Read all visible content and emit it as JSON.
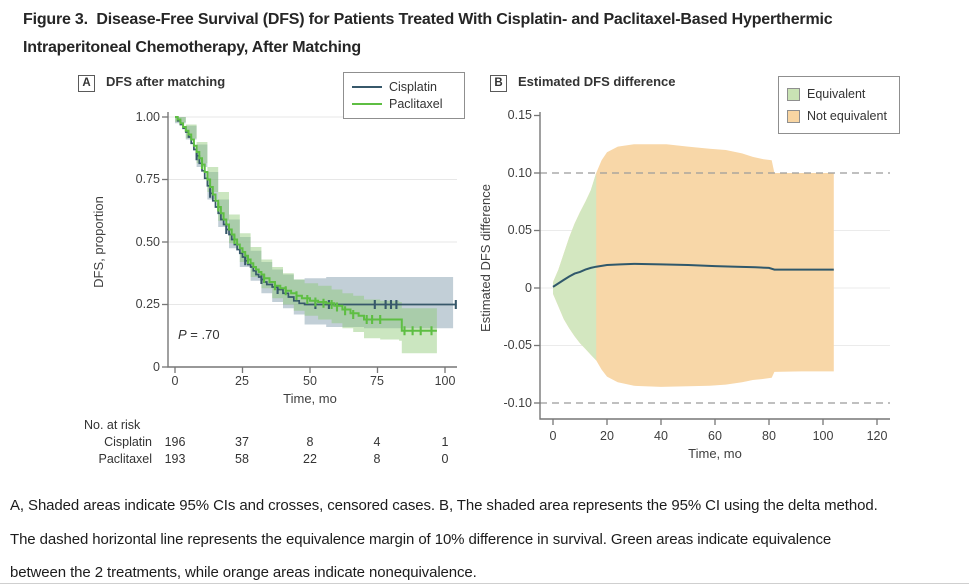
{
  "figure": {
    "title_lines": [
      "Figure 3.  Disease-Free Survival (DFS) for Patients Treated With Cisplatin- and Paclitaxel-Based Hyperthermic",
      "Intraperitoneal Chemotherapy, After Matching"
    ],
    "caption_lines": [
      "A, Shaded areas indicate 95% CIs and crosses, censored cases. B, The shaded area represents the 95% CI using the delta method.",
      "The dashed horizontal line represents the equivalence margin of 10% difference in survival. Green areas indicate equivalence",
      "between the 2 treatments, while orange areas indicate nonequivalence."
    ]
  },
  "panel_a": {
    "label": "A",
    "title": "DFS after matching",
    "legend": [
      {
        "label": "Cisplatin",
        "color": "#37586a"
      },
      {
        "label": "Paclitaxel",
        "color": "#5ebe43"
      }
    ],
    "ylabel": "DFS, proportion",
    "xlabel": "Time, mo",
    "y_ticks": [
      "1.00",
      "0.75",
      "0.50",
      "0.25",
      "0"
    ],
    "x_ticks": [
      "0",
      "25",
      "50",
      "75",
      "100"
    ],
    "p_italic": "P",
    "p_rest": " = .70",
    "risk": {
      "header": "No. at risk",
      "rows": [
        {
          "label": "Cisplatin",
          "values": [
            "196",
            "37",
            "8",
            "4",
            "1"
          ]
        },
        {
          "label": "Paclitaxel",
          "values": [
            "193",
            "58",
            "22",
            "8",
            "0"
          ]
        }
      ]
    }
  },
  "panel_b": {
    "label": "B",
    "title": "Estimated DFS difference",
    "legend": [
      {
        "label": "Equivalent",
        "color": "#c9e3b4"
      },
      {
        "label": "Not equivalent",
        "color": "#f8d5a2"
      }
    ],
    "ylabel": "Estimated DFS difference",
    "xlabel": "Time, mo",
    "y_ticks": [
      "0.15",
      "0.10",
      "0.05",
      "0",
      "-0.05",
      "-0.10"
    ],
    "x_ticks": [
      "0",
      "20",
      "40",
      "60",
      "80",
      "100",
      "120"
    ]
  },
  "chart_data": [
    {
      "type": "line",
      "subtype": "kaplan_meier",
      "title": "DFS after matching",
      "xlabel": "Time, mo",
      "ylabel": "DFS, proportion",
      "xlim": [
        0,
        107
      ],
      "ylim": [
        0,
        1.0
      ],
      "x_ticks": [
        0,
        25,
        50,
        75,
        100
      ],
      "y_ticks": [
        0,
        0.25,
        0.5,
        0.75,
        1.0
      ],
      "grid": "horizontal",
      "p_value": "P = .70",
      "legend_position": "top-right",
      "series": [
        {
          "name": "Cisplatin",
          "color": "#37586a",
          "ci_color": "#6e8ca0",
          "ci_opacity": 0.42,
          "points": [
            [
              0,
              1.0
            ],
            [
              1,
              0.985
            ],
            [
              2,
              0.97
            ],
            [
              3,
              0.955
            ],
            [
              4,
              0.94
            ],
            [
              5,
              0.92
            ],
            [
              6,
              0.895
            ],
            [
              7,
              0.87
            ],
            [
              8,
              0.845
            ],
            [
              9,
              0.815
            ],
            [
              10,
              0.785
            ],
            [
              11,
              0.755
            ],
            [
              12,
              0.725
            ],
            [
              13,
              0.695
            ],
            [
              14,
              0.665
            ],
            [
              15,
              0.64
            ],
            [
              16,
              0.615
            ],
            [
              17,
              0.59
            ],
            [
              18,
              0.57
            ],
            [
              19,
              0.55
            ],
            [
              20,
              0.53
            ],
            [
              21,
              0.51
            ],
            [
              22,
              0.49
            ],
            [
              23,
              0.47
            ],
            [
              24,
              0.455
            ],
            [
              25,
              0.44
            ],
            [
              26,
              0.425
            ],
            [
              27,
              0.41
            ],
            [
              28,
              0.4
            ],
            [
              29,
              0.385
            ],
            [
              30,
              0.37
            ],
            [
              31,
              0.36
            ],
            [
              32,
              0.35
            ],
            [
              33,
              0.34
            ],
            [
              34,
              0.33
            ],
            [
              36,
              0.32
            ],
            [
              38,
              0.31
            ],
            [
              40,
              0.295
            ],
            [
              42,
              0.28
            ],
            [
              44,
              0.265
            ],
            [
              46,
              0.255
            ],
            [
              48,
              0.25
            ],
            [
              104,
              0.25
            ]
          ],
          "ci": [
            [
              0,
              1.0,
              0.975
            ],
            [
              4,
              0.965,
              0.91
            ],
            [
              8,
              0.89,
              0.8
            ],
            [
              12,
              0.78,
              0.67
            ],
            [
              16,
              0.67,
              0.56
            ],
            [
              20,
              0.59,
              0.475
            ],
            [
              24,
              0.52,
              0.4
            ],
            [
              28,
              0.465,
              0.345
            ],
            [
              32,
              0.42,
              0.295
            ],
            [
              36,
              0.39,
              0.26
            ],
            [
              40,
              0.37,
              0.235
            ],
            [
              44,
              0.35,
              0.21
            ],
            [
              48,
              0.355,
              0.17
            ],
            [
              56,
              0.36,
              0.16
            ],
            [
              70,
              0.36,
              0.155
            ],
            [
              103,
              0.36,
              0.155
            ]
          ],
          "censored": [
            [
              8,
              0.845
            ],
            [
              13,
              0.695
            ],
            [
              19,
              0.55
            ],
            [
              26,
              0.425
            ],
            [
              32,
              0.35
            ],
            [
              38,
              0.31
            ],
            [
              52,
              0.25
            ],
            [
              57,
              0.25
            ],
            [
              74,
              0.25
            ],
            [
              78,
              0.25
            ],
            [
              80,
              0.25
            ],
            [
              82,
              0.25
            ],
            [
              104,
              0.25
            ]
          ]
        },
        {
          "name": "Paclitaxel",
          "color": "#5ebe43",
          "ci_color": "#8cc873",
          "ci_opacity": 0.45,
          "points": [
            [
              0,
              1.0
            ],
            [
              1,
              0.99
            ],
            [
              2,
              0.975
            ],
            [
              3,
              0.96
            ],
            [
              4,
              0.945
            ],
            [
              5,
              0.93
            ],
            [
              6,
              0.91
            ],
            [
              7,
              0.885
            ],
            [
              8,
              0.86
            ],
            [
              9,
              0.835
            ],
            [
              10,
              0.81
            ],
            [
              11,
              0.78
            ],
            [
              12,
              0.75
            ],
            [
              13,
              0.72
            ],
            [
              14,
              0.69
            ],
            [
              15,
              0.665
            ],
            [
              16,
              0.64
            ],
            [
              17,
              0.615
            ],
            [
              18,
              0.59
            ],
            [
              19,
              0.57
            ],
            [
              20,
              0.55
            ],
            [
              21,
              0.53
            ],
            [
              22,
              0.51
            ],
            [
              23,
              0.49
            ],
            [
              24,
              0.475
            ],
            [
              25,
              0.46
            ],
            [
              26,
              0.445
            ],
            [
              27,
              0.43
            ],
            [
              28,
              0.415
            ],
            [
              29,
              0.4
            ],
            [
              30,
              0.39
            ],
            [
              31,
              0.38
            ],
            [
              32,
              0.37
            ],
            [
              33,
              0.355
            ],
            [
              35,
              0.34
            ],
            [
              37,
              0.325
            ],
            [
              39,
              0.315
            ],
            [
              41,
              0.305
            ],
            [
              43,
              0.295
            ],
            [
              45,
              0.285
            ],
            [
              47,
              0.275
            ],
            [
              50,
              0.265
            ],
            [
              53,
              0.26
            ],
            [
              56,
              0.255
            ],
            [
              59,
              0.245
            ],
            [
              62,
              0.23
            ],
            [
              65,
              0.215
            ],
            [
              68,
              0.205
            ],
            [
              70,
              0.19
            ],
            [
              83,
              0.19
            ],
            [
              84,
              0.145
            ],
            [
              97,
              0.145
            ]
          ],
          "ci": [
            [
              0,
              1.0,
              0.98
            ],
            [
              4,
              0.97,
              0.915
            ],
            [
              8,
              0.9,
              0.815
            ],
            [
              12,
              0.8,
              0.7
            ],
            [
              16,
              0.7,
              0.585
            ],
            [
              20,
              0.61,
              0.495
            ],
            [
              24,
              0.535,
              0.42
            ],
            [
              28,
              0.48,
              0.36
            ],
            [
              32,
              0.43,
              0.315
            ],
            [
              36,
              0.4,
              0.275
            ],
            [
              40,
              0.375,
              0.25
            ],
            [
              44,
              0.35,
              0.225
            ],
            [
              48,
              0.335,
              0.205
            ],
            [
              53,
              0.325,
              0.19
            ],
            [
              58,
              0.31,
              0.175
            ],
            [
              62,
              0.295,
              0.155
            ],
            [
              66,
              0.285,
              0.14
            ],
            [
              70,
              0.27,
              0.115
            ],
            [
              76,
              0.265,
              0.11
            ],
            [
              83,
              0.26,
              0.105
            ],
            [
              84,
              0.235,
              0.055
            ],
            [
              97,
              0.23,
              0.05
            ]
          ],
          "censored": [
            [
              10,
              0.81
            ],
            [
              16,
              0.64
            ],
            [
              22,
              0.51
            ],
            [
              27,
              0.43
            ],
            [
              33,
              0.355
            ],
            [
              37,
              0.325
            ],
            [
              41,
              0.305
            ],
            [
              45,
              0.285
            ],
            [
              49,
              0.27
            ],
            [
              52,
              0.26
            ],
            [
              55,
              0.255
            ],
            [
              58,
              0.25
            ],
            [
              60,
              0.24
            ],
            [
              63,
              0.225
            ],
            [
              66,
              0.21
            ],
            [
              71,
              0.19
            ],
            [
              73,
              0.19
            ],
            [
              76,
              0.19
            ],
            [
              85,
              0.145
            ],
            [
              88,
              0.145
            ],
            [
              91,
              0.145
            ],
            [
              95,
              0.145
            ]
          ]
        }
      ],
      "at_risk": {
        "times": [
          0,
          25,
          50,
          75,
          100
        ],
        "Cisplatin": [
          196,
          37,
          8,
          4,
          1
        ],
        "Paclitaxel": [
          193,
          58,
          22,
          8,
          0
        ]
      }
    },
    {
      "type": "area",
      "subtype": "equivalence_band",
      "title": "Estimated DFS difference",
      "xlabel": "Time, mo",
      "ylabel": "Estimated DFS difference",
      "xlim": [
        0,
        120
      ],
      "ylim": [
        -0.1,
        0.15
      ],
      "x_ticks": [
        0,
        20,
        40,
        60,
        80,
        100,
        120
      ],
      "y_ticks": [
        -0.1,
        -0.05,
        0,
        0.05,
        0.1,
        0.15
      ],
      "equivalence_margin": 0.1,
      "equivalent_until_month": 16,
      "dashed_line_color": "#9b9b9b",
      "region_colors": {
        "equivalent": "#d3e7c0",
        "not_equivalent": "#f8d7a8"
      },
      "line": {
        "name": "Estimated DFS difference",
        "color": "#30586b",
        "points": [
          [
            0,
            0.001
          ],
          [
            2,
            0.004
          ],
          [
            4,
            0.007
          ],
          [
            6,
            0.01
          ],
          [
            8,
            0.0125
          ],
          [
            10,
            0.014
          ],
          [
            12,
            0.016
          ],
          [
            14,
            0.0175
          ],
          [
            16,
            0.0185
          ],
          [
            20,
            0.02
          ],
          [
            25,
            0.0205
          ],
          [
            30,
            0.021
          ],
          [
            40,
            0.0205
          ],
          [
            50,
            0.02
          ],
          [
            60,
            0.019
          ],
          [
            68,
            0.0185
          ],
          [
            75,
            0.018
          ],
          [
            80,
            0.0175
          ],
          [
            82,
            0.016
          ],
          [
            92,
            0.016
          ],
          [
            104,
            0.016
          ]
        ]
      },
      "ci_upper": [
        [
          0,
          0.005
        ],
        [
          2,
          0.016
        ],
        [
          4,
          0.03
        ],
        [
          6,
          0.044
        ],
        [
          8,
          0.056
        ],
        [
          10,
          0.066
        ],
        [
          12,
          0.075
        ],
        [
          14,
          0.085
        ],
        [
          16,
          0.1
        ],
        [
          18,
          0.111
        ],
        [
          20,
          0.118
        ],
        [
          24,
          0.123
        ],
        [
          30,
          0.125
        ],
        [
          42,
          0.125
        ],
        [
          50,
          0.123
        ],
        [
          58,
          0.121
        ],
        [
          64,
          0.12
        ],
        [
          70,
          0.117
        ],
        [
          74,
          0.114
        ],
        [
          78,
          0.112
        ],
        [
          81,
          0.111
        ],
        [
          82,
          0.1
        ],
        [
          104,
          0.1
        ]
      ],
      "ci_lower": [
        [
          0,
          -0.005
        ],
        [
          2,
          -0.016
        ],
        [
          4,
          -0.027
        ],
        [
          6,
          -0.035
        ],
        [
          8,
          -0.042
        ],
        [
          10,
          -0.048
        ],
        [
          12,
          -0.053
        ],
        [
          14,
          -0.058
        ],
        [
          16,
          -0.063
        ],
        [
          18,
          -0.071
        ],
        [
          20,
          -0.077
        ],
        [
          24,
          -0.082
        ],
        [
          30,
          -0.085
        ],
        [
          40,
          -0.086
        ],
        [
          50,
          -0.0855
        ],
        [
          58,
          -0.085
        ],
        [
          64,
          -0.084
        ],
        [
          70,
          -0.082
        ],
        [
          74,
          -0.08
        ],
        [
          78,
          -0.079
        ],
        [
          81,
          -0.078
        ],
        [
          82,
          -0.073
        ],
        [
          92,
          -0.0725
        ],
        [
          104,
          -0.0725
        ]
      ]
    }
  ]
}
